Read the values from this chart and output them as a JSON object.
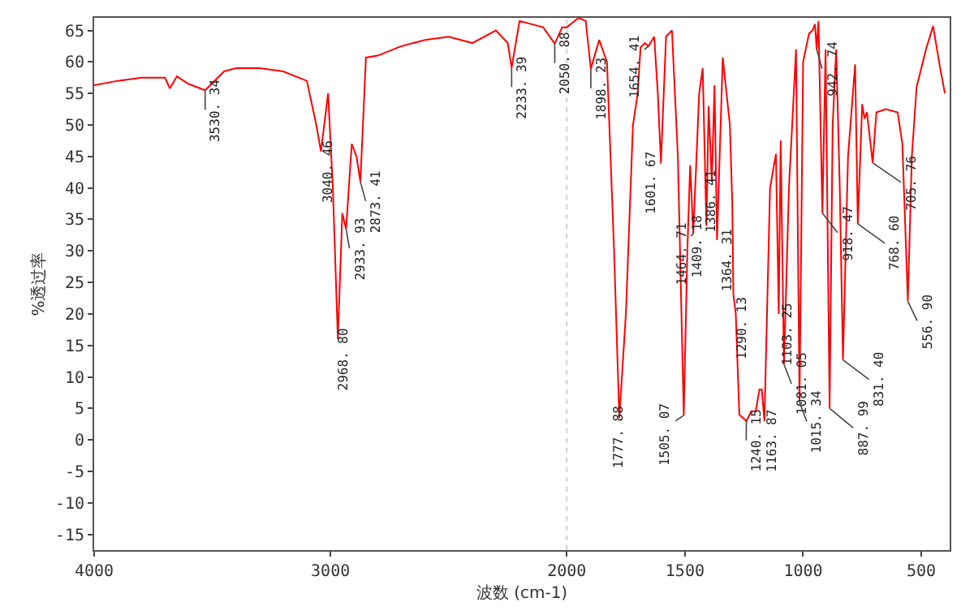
{
  "chart_data": {
    "type": "line",
    "xlabel": "波数 (cm-1)",
    "ylabel": "%透过率",
    "xlim": [
      4000,
      380
    ],
    "xticks": [
      4000,
      3000,
      2000,
      1500,
      1000,
      500
    ],
    "ylim": [
      -17.5,
      67
    ],
    "yticks": [
      -15,
      -10,
      -5,
      0,
      5,
      10,
      15,
      20,
      25,
      30,
      35,
      40,
      45,
      50,
      55,
      60,
      65
    ],
    "grid": false,
    "marker": "none",
    "line_style": "solid",
    "ref_lines": [
      {
        "axis": "x",
        "value": 2000,
        "color": "#d0d0d0",
        "line_style": "dotted"
      }
    ],
    "series": [
      {
        "color": "#ff0000",
        "x": [
          4000,
          3900,
          3800,
          3700,
          3680,
          3650,
          3600,
          3530.34,
          3450,
          3400,
          3300,
          3200,
          3100,
          3060,
          3040.46,
          3010,
          2990,
          2968.8,
          2950,
          2933.93,
          2910,
          2890,
          2873.41,
          2850,
          2800,
          2700,
          2600,
          2500,
          2400,
          2300,
          2250,
          2233.39,
          2200,
          2100,
          2050.88,
          2020,
          2000,
          1950,
          1920,
          1898.23,
          1863,
          1830,
          1800,
          1777.88,
          1750,
          1720,
          1700,
          1688,
          1670,
          1654.41,
          1630,
          1615,
          1601.67,
          1580,
          1555,
          1530,
          1505.07,
          1490,
          1478,
          1464.71,
          1440,
          1425,
          1409.18,
          1400,
          1386.41,
          1375,
          1364.31,
          1340,
          1310,
          1300,
          1295,
          1285,
          1270,
          1240.15,
          1220,
          1200,
          1185,
          1175,
          1163.87,
          1140,
          1115,
          1103.25,
          1095,
          1081.05,
          1060,
          1030,
          1015.34,
          1000,
          975,
          960,
          950,
          942.74,
          935,
          918.47,
          905,
          887.99,
          875,
          860,
          845,
          831.4,
          810,
          780,
          768.6,
          750,
          740,
          730,
          705.76,
          690,
          650,
          600,
          580,
          556.9,
          540,
          520,
          480,
          450,
          420,
          400
        ],
        "values": [
          56.3,
          57,
          57.5,
          57.5,
          55.8,
          57.7,
          56.5,
          55.5,
          58.5,
          59,
          59,
          58.5,
          57,
          50,
          45.8,
          55,
          40,
          16,
          36,
          33.5,
          47,
          45,
          41,
          60.7,
          61,
          62.5,
          63.5,
          64,
          63,
          65,
          63,
          59.1,
          66.5,
          65.5,
          62.9,
          65.5,
          65.5,
          67,
          66.5,
          58.9,
          63.5,
          60,
          30,
          3.5,
          20,
          50,
          55,
          62.3,
          63,
          62.5,
          64,
          55,
          44,
          64,
          65,
          45,
          3.9,
          30,
          43.6,
          32.7,
          55,
          59,
          34,
          53,
          41,
          56.3,
          31.7,
          60.7,
          50,
          37.8,
          23,
          20,
          4,
          3,
          4.5,
          4.6,
          8,
          8,
          3,
          40,
          45.4,
          20,
          47.5,
          12,
          40,
          62,
          6,
          60,
          64.5,
          65,
          66,
          62,
          66.5,
          36,
          62,
          5,
          50,
          62,
          40,
          12.7,
          45,
          59.6,
          34.3,
          53.3,
          51,
          52,
          44,
          52,
          52.5,
          52,
          47,
          22,
          45,
          56,
          62,
          65.7,
          59,
          55
        ]
      }
    ],
    "annotations": [
      {
        "text": "3530. 34",
        "x": 3530.34,
        "y": 55.5
      },
      {
        "text": "3040. 46",
        "x": 3040.46,
        "y": 45.8
      },
      {
        "text": "2968. 80",
        "x": 2968.8,
        "y": 16
      },
      {
        "text": "2933. 93",
        "x": 2933.93,
        "y": 33.5
      },
      {
        "text": "2873. 41",
        "x": 2873.41,
        "y": 41
      },
      {
        "text": "2233. 39",
        "x": 2233.39,
        "y": 59.1
      },
      {
        "text": "2050. 88",
        "x": 2050.88,
        "y": 62.9
      },
      {
        "text": "1898. 23",
        "x": 1898.23,
        "y": 58.9
      },
      {
        "text": "1777. 88",
        "x": 1777.88,
        "y": 3.5
      },
      {
        "text": "1654. 41",
        "x": 1654.41,
        "y": 62.5
      },
      {
        "text": "1601. 67",
        "x": 1601.67,
        "y": 44
      },
      {
        "text": "1505. 07",
        "x": 1505.07,
        "y": 3.9
      },
      {
        "text": "1464. 71",
        "x": 1464.71,
        "y": 32.7
      },
      {
        "text": "1409. 18",
        "x": 1409.18,
        "y": 34
      },
      {
        "text": "1386. 41",
        "x": 1386.41,
        "y": 41
      },
      {
        "text": "1364. 31",
        "x": 1364.31,
        "y": 31.7
      },
      {
        "text": "1290. 13",
        "x": 1290.13,
        "y": 21
      },
      {
        "text": "1240. 15",
        "x": 1240.15,
        "y": 3
      },
      {
        "text": "1163. 87",
        "x": 1163.87,
        "y": 3
      },
      {
        "text": "1103. 25",
        "x": 1103.25,
        "y": 20
      },
      {
        "text": "1081. 05",
        "x": 1081.05,
        "y": 12
      },
      {
        "text": "1015. 34",
        "x": 1015.34,
        "y": 6
      },
      {
        "text": "942. 74",
        "x": 942.74,
        "y": 62
      },
      {
        "text": "918. 47",
        "x": 918.47,
        "y": 36
      },
      {
        "text": "887. 99",
        "x": 887.99,
        "y": 5
      },
      {
        "text": "831. 40",
        "x": 831.4,
        "y": 12.7
      },
      {
        "text": "768. 60",
        "x": 768.6,
        "y": 34.3
      },
      {
        "text": "705. 76",
        "x": 705.76,
        "y": 44
      },
      {
        "text": "556. 90",
        "x": 556.9,
        "y": 22
      }
    ]
  }
}
